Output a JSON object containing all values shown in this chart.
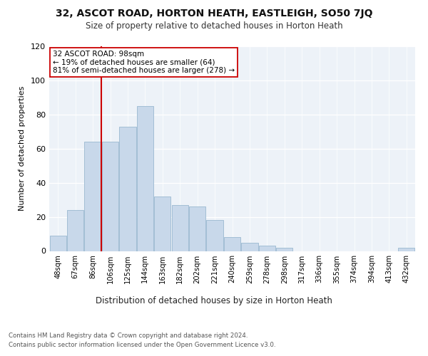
{
  "title": "32, ASCOT ROAD, HORTON HEATH, EASTLEIGH, SO50 7JQ",
  "subtitle": "Size of property relative to detached houses in Horton Heath",
  "xlabel": "Distribution of detached houses by size in Horton Heath",
  "ylabel": "Number of detached properties",
  "bar_color": "#c8d8ea",
  "bar_edge_color": "#9ab8d0",
  "categories": [
    "48sqm",
    "67sqm",
    "86sqm",
    "106sqm",
    "125sqm",
    "144sqm",
    "163sqm",
    "182sqm",
    "202sqm",
    "221sqm",
    "240sqm",
    "259sqm",
    "278sqm",
    "298sqm",
    "317sqm",
    "336sqm",
    "355sqm",
    "374sqm",
    "394sqm",
    "413sqm",
    "432sqm"
  ],
  "values": [
    9,
    24,
    64,
    64,
    73,
    85,
    32,
    27,
    26,
    18,
    8,
    5,
    3,
    2,
    0,
    0,
    0,
    0,
    0,
    0,
    2
  ],
  "vline_color": "#cc0000",
  "annotation_text": "32 ASCOT ROAD: 98sqm\n← 19% of detached houses are smaller (64)\n81% of semi-detached houses are larger (278) →",
  "annotation_box_color": "#ffffff",
  "annotation_box_edge": "#cc0000",
  "ylim": [
    0,
    120
  ],
  "yticks": [
    0,
    20,
    40,
    60,
    80,
    100,
    120
  ],
  "footer1": "Contains HM Land Registry data © Crown copyright and database right 2024.",
  "footer2": "Contains public sector information licensed under the Open Government Licence v3.0.",
  "plot_background": "#edf2f8"
}
